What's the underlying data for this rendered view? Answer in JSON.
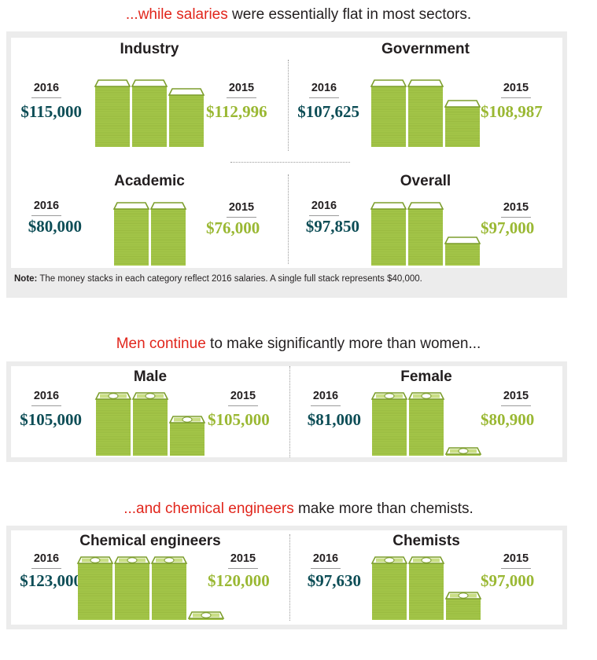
{
  "colors": {
    "highlight": "#e1261c",
    "value_2016": "#0d4d56",
    "value_2015": "#9ab833",
    "stack_fill": "#a6c84a",
    "stack_line": "#7d9e2d",
    "bill_band": "#c9de85"
  },
  "headlines": {
    "sectors_hl": "...while salaries",
    "sectors_rest": " were essentially flat in most sectors.",
    "gender_hl": "Men continue",
    "gender_rest": " to make significantly more than women...",
    "discipline_hl": "...and chemical engineers",
    "discipline_rest": " make more than chemists."
  },
  "note": {
    "label": "Note:",
    "text": " The money stacks in each category reflect 2016 salaries. A single full stack represents $40,000."
  },
  "chart_data": [
    {
      "type": "bar",
      "title": "Industry",
      "unit_per_full_stack": 40000,
      "categories": [
        "2016",
        "2015"
      ],
      "series": [
        {
          "values": [
            115000,
            112996
          ]
        }
      ],
      "labels": {
        "year_2016": "2016",
        "year_2015": "2015",
        "amount_2016": "$115,000",
        "amount_2015": "$112,996"
      }
    },
    {
      "type": "bar",
      "title": "Government",
      "unit_per_full_stack": 40000,
      "categories": [
        "2016",
        "2015"
      ],
      "series": [
        {
          "values": [
            107625,
            108987
          ]
        }
      ],
      "labels": {
        "year_2016": "2016",
        "year_2015": "2015",
        "amount_2016": "$107,625",
        "amount_2015": "$108,987"
      }
    },
    {
      "type": "bar",
      "title": "Academic",
      "unit_per_full_stack": 40000,
      "categories": [
        "2016",
        "2015"
      ],
      "series": [
        {
          "values": [
            80000,
            76000
          ]
        }
      ],
      "labels": {
        "year_2016": "2016",
        "year_2015": "2015",
        "amount_2016": "$80,000",
        "amount_2015": "$76,000"
      }
    },
    {
      "type": "bar",
      "title": "Overall",
      "unit_per_full_stack": 40000,
      "categories": [
        "2016",
        "2015"
      ],
      "series": [
        {
          "values": [
            97850,
            97000
          ]
        }
      ],
      "labels": {
        "year_2016": "2016",
        "year_2015": "2015",
        "amount_2016": "$97,850",
        "amount_2015": "$97,000"
      }
    },
    {
      "type": "bar",
      "title": "Male",
      "unit_per_full_stack": 40000,
      "categories": [
        "2016",
        "2015"
      ],
      "series": [
        {
          "values": [
            105000,
            105000
          ]
        }
      ],
      "labels": {
        "year_2016": "2016",
        "year_2015": "2015",
        "amount_2016": "$105,000",
        "amount_2015": "$105,000"
      }
    },
    {
      "type": "bar",
      "title": "Female",
      "unit_per_full_stack": 40000,
      "categories": [
        "2016",
        "2015"
      ],
      "series": [
        {
          "values": [
            81000,
            80900
          ]
        }
      ],
      "labels": {
        "year_2016": "2016",
        "year_2015": "2015",
        "amount_2016": "$81,000",
        "amount_2015": "$80,900"
      }
    },
    {
      "type": "bar",
      "title": "Chemical engineers",
      "unit_per_full_stack": 40000,
      "categories": [
        "2016",
        "2015"
      ],
      "series": [
        {
          "values": [
            123000,
            120000
          ]
        }
      ],
      "labels": {
        "year_2016": "2016",
        "year_2015": "2015",
        "amount_2016": "$123,000",
        "amount_2015": "$120,000"
      }
    },
    {
      "type": "bar",
      "title": "Chemists",
      "unit_per_full_stack": 40000,
      "categories": [
        "2016",
        "2015"
      ],
      "series": [
        {
          "values": [
            97630,
            97000
          ]
        }
      ],
      "labels": {
        "year_2016": "2016",
        "year_2015": "2015",
        "amount_2016": "$97,630",
        "amount_2015": "$97,000"
      }
    }
  ]
}
